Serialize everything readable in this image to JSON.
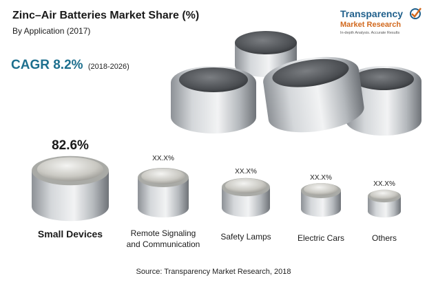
{
  "header": {
    "title": "Zinc–Air Batteries Market Share (%)",
    "subtitle": "By Application (2017)"
  },
  "cagr": {
    "label": "CAGR 8.2%",
    "period": "(2018-2026)"
  },
  "logo": {
    "name_line1": "Transparency",
    "name_line2": "Market Research",
    "tagline": "In-depth Analysis. Accurate Results"
  },
  "source": "Source: Transparency Market Research, 2018",
  "colors": {
    "accent": "#1d6f8e",
    "logo_blue": "#1f5f8b",
    "logo_orange": "#d2691e"
  },
  "chart_data": {
    "type": "bar",
    "title": "Zinc–Air Batteries Market Share (%)",
    "subtitle": "By Application (2017)",
    "categories": [
      "Small Devices",
      "Remote Signaling and Communication",
      "Safety Lamps",
      "Electric Cars",
      "Others"
    ],
    "value_labels": [
      "82.6%",
      "XX.X%",
      "XX.X%",
      "XX.X%",
      "XX.X%"
    ],
    "values": [
      82.6,
      null,
      null,
      null,
      null
    ]
  }
}
